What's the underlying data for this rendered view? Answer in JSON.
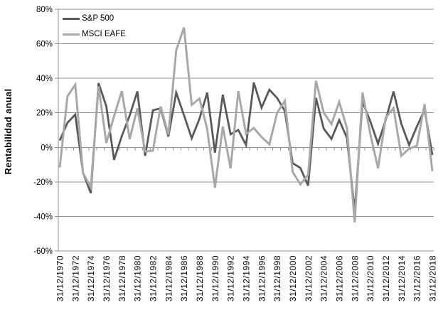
{
  "chart_data": {
    "type": "line",
    "title": "",
    "xlabel": "",
    "ylabel": "Rentabilidad anual",
    "ylim": [
      -60,
      80
    ],
    "y_tick_step": 20,
    "y_tick_labels": [
      "80%",
      "60%",
      "40%",
      "20%",
      "0%",
      "-20%",
      "-40%",
      "-60%"
    ],
    "x_tick_interval": 2,
    "grid": true,
    "legend_position": "top-left",
    "background": "#ffffff",
    "grid_color": "#8f8f8f",
    "axis_color": "#8f8f8f",
    "text_color": "#000000",
    "categories": [
      "31/12/1970",
      "31/12/1971",
      "31/12/1972",
      "31/12/1973",
      "31/12/1974",
      "31/12/1975",
      "31/12/1976",
      "31/12/1977",
      "31/12/1978",
      "31/12/1979",
      "31/12/1980",
      "31/12/1981",
      "31/12/1982",
      "31/12/1983",
      "31/12/1984",
      "31/12/1985",
      "31/12/1986",
      "31/12/1987",
      "31/12/1988",
      "31/12/1989",
      "31/12/1990",
      "31/12/1991",
      "31/12/1992",
      "31/12/1993",
      "31/12/1994",
      "31/12/1995",
      "31/12/1996",
      "31/12/1997",
      "31/12/1998",
      "31/12/1999",
      "31/12/2000",
      "31/12/2001",
      "31/12/2002",
      "31/12/2003",
      "31/12/2004",
      "31/12/2005",
      "31/12/2006",
      "31/12/2007",
      "31/12/2008",
      "31/12/2009",
      "31/12/2010",
      "31/12/2011",
      "31/12/2012",
      "31/12/2013",
      "31/12/2014",
      "31/12/2015",
      "31/12/2016",
      "31/12/2017",
      "31/12/2018"
    ],
    "series": [
      {
        "name": "S&P 500",
        "color": "#595959",
        "values": [
          4.0,
          14.3,
          19.0,
          -14.7,
          -26.5,
          37.2,
          23.8,
          -7.2,
          6.6,
          18.4,
          32.4,
          -4.9,
          21.5,
          22.6,
          6.3,
          31.7,
          18.7,
          5.3,
          16.6,
          31.7,
          -3.1,
          30.5,
          7.6,
          10.1,
          1.3,
          37.6,
          23.0,
          33.4,
          28.6,
          21.0,
          -9.1,
          -11.9,
          -22.1,
          28.7,
          10.9,
          4.9,
          15.8,
          5.5,
          -37.0,
          26.5,
          15.1,
          2.1,
          16.0,
          32.4,
          13.7,
          1.4,
          12.0,
          21.8,
          -4.4
        ]
      },
      {
        "name": "MSCI EAFE",
        "color": "#a8a8a8",
        "values": [
          -11.7,
          29.6,
          36.3,
          -14.9,
          -23.2,
          35.4,
          2.5,
          18.1,
          32.6,
          4.8,
          22.6,
          -2.3,
          -1.9,
          23.7,
          7.4,
          56.2,
          69.4,
          24.6,
          28.3,
          10.5,
          -23.4,
          12.1,
          -12.2,
          32.6,
          7.8,
          11.2,
          6.0,
          1.8,
          20.0,
          27.0,
          -14.2,
          -21.4,
          -15.9,
          38.6,
          20.2,
          13.5,
          26.3,
          11.2,
          -43.4,
          31.8,
          7.8,
          -12.1,
          17.3,
          22.8,
          -4.9,
          -0.8,
          1.0,
          25.0,
          -13.8
        ]
      }
    ]
  }
}
